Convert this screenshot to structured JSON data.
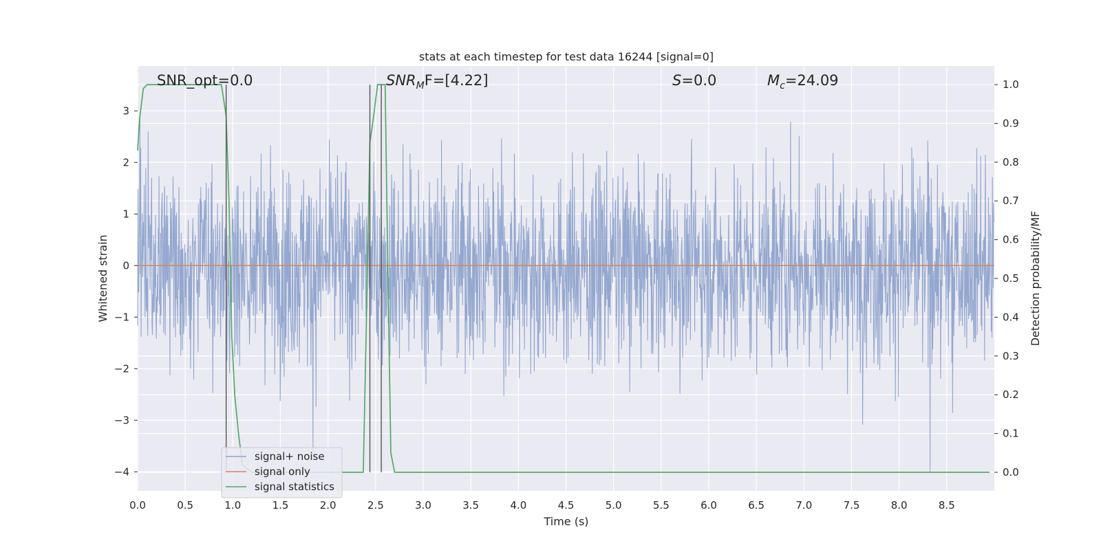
{
  "chart_data": {
    "type": "line",
    "title": "stats at each timestep for test data 16244 [signal=0]",
    "xlabel": "Time (s)",
    "ylabel": "Whitened strain",
    "ylabel_right": "Detection probability/MF",
    "xlim": [
      0.0,
      9.0
    ],
    "ylim": [
      -4.37,
      3.87
    ],
    "ylim_right": [
      -0.048,
      1.048
    ],
    "x_ticks": [
      "0.0",
      "0.5",
      "1.0",
      "1.5",
      "2.0",
      "2.5",
      "3.0",
      "3.5",
      "4.0",
      "4.5",
      "5.0",
      "5.5",
      "6.0",
      "6.5",
      "7.0",
      "7.5",
      "8.0",
      "8.5"
    ],
    "y_ticks": [
      "−4",
      "−3",
      "−2",
      "−1",
      "0",
      "1",
      "2",
      "3"
    ],
    "y_ticks_right": [
      "0.0",
      "0.1",
      "0.2",
      "0.3",
      "0.4",
      "0.5",
      "0.6",
      "0.7",
      "0.8",
      "0.9",
      "1.0"
    ],
    "grid": true,
    "legend_position": "lower-left",
    "annotations": {
      "snr_opt": "SNR_opt=0.0",
      "snr_mf_base": "SNR",
      "snr_mf_sub": "M",
      "snr_mf_rest": "F=[4.22]",
      "s_base": "S",
      "s_rest": "=0.0",
      "mc_base": "M",
      "mc_sub": "c",
      "mc_rest": "=24.09"
    },
    "series": [
      {
        "name": "signal+ noise",
        "color": "#8fa3cc",
        "note_range": [
          -4.0,
          3.5
        ]
      },
      {
        "name": "signal only",
        "color": "#dd8452",
        "x": [
          0.0,
          9.0
        ],
        "y": [
          0.0,
          0.0
        ]
      },
      {
        "name": "signal statistics",
        "color": "#55a868",
        "x": [
          0.0,
          0.02,
          0.06,
          0.1,
          0.2,
          0.4,
          0.6,
          0.8,
          0.88,
          0.93,
          0.96,
          0.99,
          1.02,
          1.06,
          1.1,
          1.2,
          1.5,
          2.0,
          2.37,
          2.4,
          2.44,
          2.48,
          2.52,
          2.56,
          2.6,
          2.63,
          2.66,
          2.7,
          3.0,
          5.0,
          7.0,
          8.95
        ],
        "y": [
          0.83,
          0.91,
          0.99,
          1.0,
          1.0,
          1.0,
          1.0,
          1.0,
          1.0,
          0.92,
          0.7,
          0.35,
          0.2,
          0.1,
          0.02,
          0.0,
          0.0,
          0.0,
          0.0,
          0.35,
          0.85,
          0.92,
          1.0,
          1.0,
          1.0,
          0.5,
          0.05,
          0.0,
          0.0,
          0.0,
          0.0,
          0.0
        ]
      }
    ],
    "vertical_lines": [
      0.93,
      2.44,
      2.56
    ]
  }
}
